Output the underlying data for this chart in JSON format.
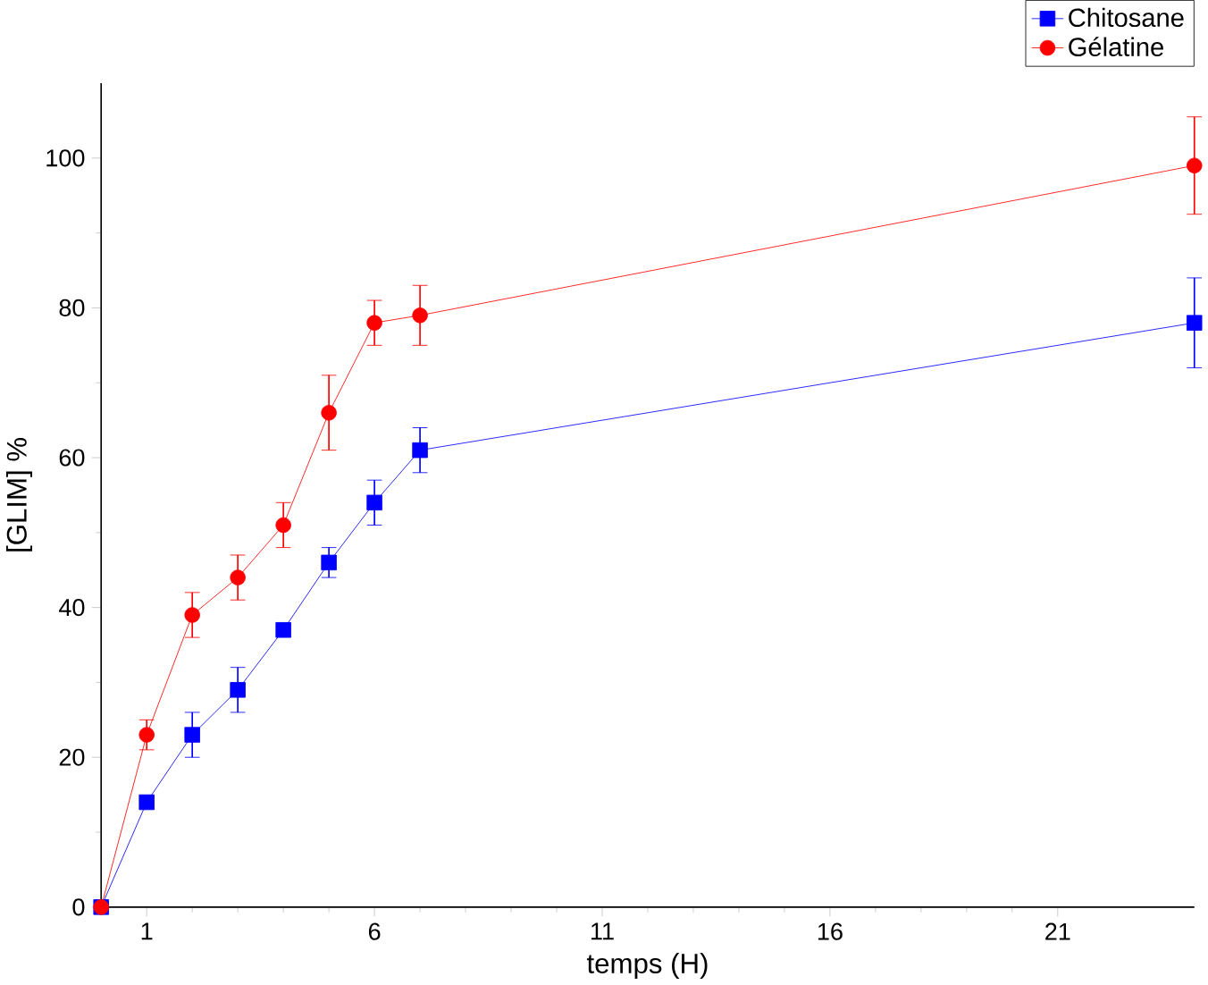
{
  "chart_data": {
    "type": "line",
    "xlabel": "temps (H)",
    "ylabel": "[GLIM] %",
    "x": [
      0,
      1,
      2,
      3,
      4,
      5,
      6,
      7,
      24
    ],
    "series": [
      {
        "name": "Chitosane",
        "color": "#0000ff",
        "marker": "square",
        "values": [
          0,
          14,
          23,
          29,
          37,
          46,
          54,
          61,
          78
        ],
        "errors": [
          null,
          null,
          3,
          3,
          null,
          2,
          3,
          3,
          6
        ]
      },
      {
        "name": "Gélatine",
        "color": "#ff0000",
        "marker": "circle",
        "values": [
          0,
          23,
          39,
          44,
          51,
          66,
          78,
          79,
          99
        ],
        "errors": [
          null,
          2,
          3,
          3,
          3,
          5,
          3,
          4,
          6.5
        ]
      }
    ],
    "xlim": [
      0,
      24
    ],
    "ylim": [
      0,
      110
    ],
    "xticks": [
      1,
      6,
      11,
      16,
      21
    ],
    "yticks": [
      0,
      20,
      40,
      60,
      80,
      100
    ],
    "grid": false,
    "legend": "top right",
    "line_style": "solid"
  }
}
